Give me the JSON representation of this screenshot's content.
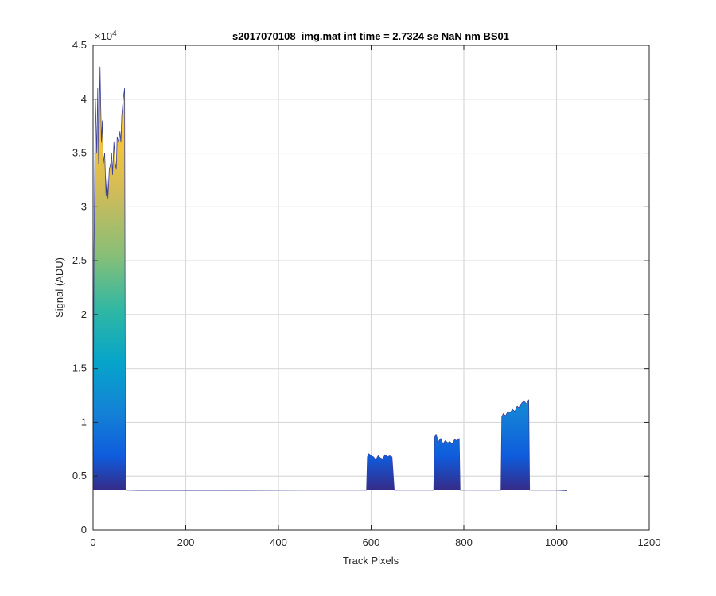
{
  "chart_data": {
    "type": "area",
    "title": "s2017070108_img.mat int time = 2.7324 se  NaN nm BS01",
    "xlabel": "Track Pixels",
    "ylabel": "Signal (ADU)",
    "xlim": [
      0,
      1200
    ],
    "ylim": [
      0,
      45000
    ],
    "x_ticks": [
      0,
      200,
      400,
      600,
      800,
      1000,
      1200
    ],
    "y_ticks": [
      0,
      5000,
      10000,
      15000,
      20000,
      25000,
      30000,
      35000,
      40000,
      45000
    ],
    "x_tick_labels": [
      "0",
      "200",
      "400",
      "600",
      "800",
      "1000",
      "1200"
    ],
    "y_tick_labels": [
      "0",
      "0.5",
      "1",
      "1.5",
      "2",
      "2.5",
      "3",
      "3.5",
      "4",
      "4.5"
    ],
    "y_exponent_label": "×10",
    "y_exponent_power": "4",
    "grid": true,
    "baseline": 3700,
    "series": [
      {
        "x": [
          0,
          2,
          5,
          8,
          10,
          12,
          15,
          18,
          20,
          22,
          25,
          28,
          30,
          32,
          35,
          38,
          40,
          42,
          45,
          48,
          50,
          52,
          55,
          58,
          60,
          62,
          65,
          68,
          70,
          72,
          75,
          100,
          300,
          500,
          590,
          592,
          595,
          600,
          605,
          610,
          615,
          620,
          625,
          630,
          635,
          640,
          645,
          650,
          652,
          655,
          700,
          735,
          737,
          740,
          745,
          750,
          755,
          760,
          765,
          770,
          775,
          780,
          785,
          790,
          792,
          795,
          850,
          880,
          882,
          885,
          890,
          895,
          900,
          905,
          910,
          915,
          920,
          925,
          930,
          935,
          940,
          942,
          945,
          1000,
          1023
        ],
        "y": [
          3700,
          26000,
          40000,
          35000,
          41000,
          34000,
          43000,
          36000,
          38000,
          34000,
          35000,
          31000,
          33000,
          30800,
          33500,
          34000,
          35000,
          33000,
          36000,
          34000,
          33500,
          36500,
          36000,
          37000,
          36000,
          38500,
          40000,
          41000,
          3800,
          3700,
          3700,
          3680,
          3680,
          3700,
          3700,
          6800,
          7100,
          6900,
          6800,
          6500,
          6900,
          6700,
          6600,
          7000,
          6800,
          6900,
          6800,
          3700,
          3700,
          3700,
          3700,
          3700,
          8600,
          8900,
          8200,
          8500,
          8000,
          8300,
          8100,
          8200,
          8000,
          8400,
          8300,
          8500,
          3700,
          3700,
          3700,
          3700,
          10500,
          10800,
          10600,
          11000,
          10900,
          11200,
          11000,
          11500,
          11300,
          11800,
          12000,
          11700,
          12100,
          3700,
          3700,
          3700,
          3650
        ]
      }
    ]
  }
}
